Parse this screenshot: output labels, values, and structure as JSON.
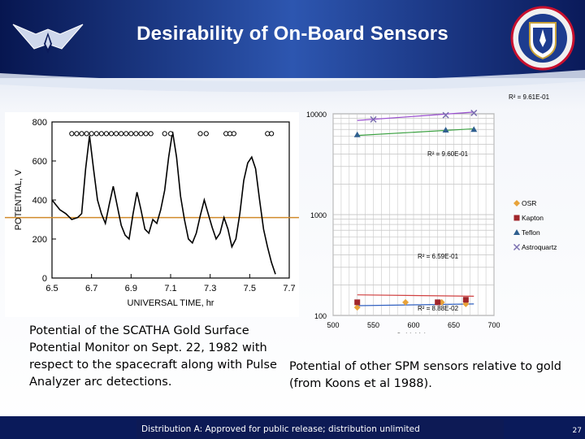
{
  "slide": {
    "title": "Desirability of On-Board Sensors",
    "caption_left": "Potential of the SCATHA Gold Surface Potential Monitor on Sept. 22, 1982 with respect to the spacecraft along with Pulse Analyzer arc detections.",
    "caption_right": "Potential of other SPM sensors relative to gold (from Koons et al 1988).",
    "footer": "Distribution A: Approved for public release; distribution unlimited",
    "page_number": "27",
    "colors": {
      "header_dark": "#0a1a5a",
      "header_light": "#2d56b0",
      "background_light": "#dfe6f3",
      "footer_bar": "#0d1a55"
    },
    "icons": {
      "left_logo": "air-force-wings-logo",
      "right_logo": "afrl-shield-logo"
    }
  },
  "chart_data": [
    {
      "type": "line",
      "xlabel": "UNIVERSAL TIME, hr",
      "ylabel": "POTENTIAL, V",
      "xlim": [
        6.5,
        7.7
      ],
      "ylim": [
        0,
        800
      ],
      "xticks": [
        "6.5",
        "6.7",
        "6.9",
        "7.1",
        "7.3",
        "7.5",
        "7.7"
      ],
      "yticks": [
        "0",
        "200",
        "400",
        "600",
        "800"
      ],
      "series": [
        {
          "values_x": [
            6.5,
            6.54,
            6.57,
            6.6,
            6.63,
            6.65,
            6.67,
            6.69,
            6.71,
            6.73,
            6.75,
            6.77,
            6.79,
            6.81,
            6.83,
            6.85,
            6.87,
            6.89,
            6.91,
            6.93,
            6.95,
            6.97,
            6.99,
            7.01,
            7.03,
            7.05,
            7.07,
            7.09,
            7.11,
            7.13,
            7.15,
            7.17,
            7.19,
            7.21,
            7.23,
            7.25,
            7.27,
            7.29,
            7.31,
            7.33,
            7.35,
            7.37,
            7.39,
            7.41,
            7.43,
            7.45,
            7.47,
            7.49,
            7.51,
            7.53,
            7.55,
            7.57,
            7.59,
            7.61,
            7.63
          ],
          "values_y": [
            400,
            350,
            330,
            300,
            310,
            330,
            560,
            730,
            560,
            400,
            330,
            280,
            380,
            470,
            370,
            270,
            220,
            200,
            330,
            440,
            350,
            250,
            230,
            300,
            280,
            350,
            450,
            620,
            750,
            620,
            420,
            300,
            200,
            180,
            230,
            320,
            400,
            330,
            260,
            200,
            230,
            310,
            250,
            160,
            200,
            330,
            500,
            590,
            620,
            560,
            400,
            250,
            160,
            80,
            20
          ]
        }
      ],
      "reference_line_y": 310,
      "arc_detection_markers": {
        "type": "circles",
        "groups": [
          {
            "x_start": 6.6,
            "x_end": 7.0
          },
          {
            "x_start": 7.07,
            "x_end": 7.1
          },
          {
            "x_start": 7.25,
            "x_end": 7.28
          },
          {
            "x_start": 7.38,
            "x_end": 7.42
          },
          {
            "x_start": 7.59,
            "x_end": 7.61
          }
        ],
        "y": 740
      }
    },
    {
      "type": "scatter",
      "xlabel": "Gold, Volts",
      "ylabel": "",
      "xlim": [
        500,
        700
      ],
      "ylim": [
        100,
        10000
      ],
      "log_y": true,
      "xticks": [
        "500",
        "550",
        "600",
        "650",
        "700"
      ],
      "yticks": [
        "100",
        "1000",
        "10000"
      ],
      "legend": {
        "placement": "right",
        "entries": [
          "OSR",
          "Kapton",
          "Teflon",
          "Astroquartz"
        ]
      },
      "annotations": [
        "R² = 9.61E-01",
        "R² = 9.60E-01",
        "R² = 6.59E-01",
        "R² = 8.88E-02"
      ],
      "series": [
        {
          "name": "OSR",
          "color": "#e8a33a",
          "x": [
            530,
            590,
            635,
            665
          ],
          "y": [
            120,
            135,
            135,
            130
          ]
        },
        {
          "name": "Kapton",
          "color": "#a0262b",
          "x": [
            530,
            630,
            665
          ],
          "y": [
            135,
            135,
            143
          ]
        },
        {
          "name": "Teflon",
          "color": "#2f5f8f",
          "x": [
            530,
            640,
            675
          ],
          "y": [
            6200,
            6900,
            7000
          ]
        },
        {
          "name": "Astroquartz",
          "color": "#7a6fb0",
          "x": [
            550,
            640,
            675
          ],
          "y": [
            8800,
            9700,
            10200
          ]
        }
      ],
      "trendlines": [
        {
          "color": "#9a4fd0",
          "x": [
            530,
            675
          ],
          "y": [
            8600,
            10400
          ]
        },
        {
          "color": "#3aa040",
          "x": [
            530,
            675
          ],
          "y": [
            6100,
            7100
          ]
        },
        {
          "color": "#d04040",
          "x": [
            530,
            675
          ],
          "y": [
            160,
            155
          ]
        },
        {
          "color": "#3060c0",
          "x": [
            530,
            675
          ],
          "y": [
            125,
            130
          ]
        }
      ]
    }
  ]
}
